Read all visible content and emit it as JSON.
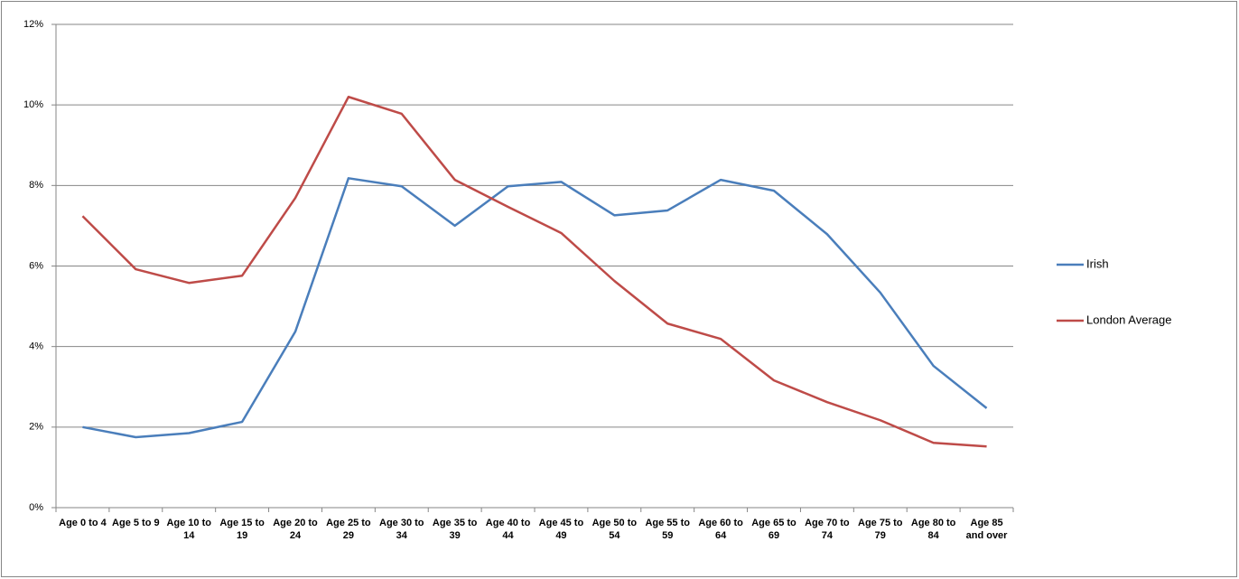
{
  "chart_data": {
    "type": "line",
    "categories": [
      "Age 0 to 4",
      "Age 5 to 9",
      "Age 10 to 14",
      "Age 15 to 19",
      "Age 20 to 24",
      "Age 25 to 29",
      "Age 30 to 34",
      "Age 35 to 39",
      "Age 40 to 44",
      "Age 45 to 49",
      "Age 50 to 54",
      "Age 55 to 59",
      "Age 60 to 64",
      "Age 65 to 69",
      "Age 70 to 74",
      "Age 75 to 79",
      "Age 80 to 84",
      "Age 85 and over"
    ],
    "series": [
      {
        "name": "Irish",
        "color": "#4a7ebb",
        "values": [
          2.0,
          1.75,
          1.85,
          2.13,
          4.37,
          8.18,
          7.98,
          7.0,
          7.98,
          8.09,
          7.26,
          7.38,
          8.14,
          7.87,
          6.79,
          5.34,
          3.52,
          2.47
        ]
      },
      {
        "name": "London Average",
        "color": "#be4b48",
        "values": [
          7.24,
          5.92,
          5.58,
          5.76,
          7.69,
          10.2,
          9.78,
          8.14,
          7.47,
          6.82,
          5.63,
          4.57,
          4.19,
          3.16,
          2.62,
          2.17,
          1.61,
          1.52
        ]
      }
    ],
    "ylim": [
      0,
      12
    ],
    "yticks": [
      {
        "value": 0,
        "label": "0%"
      },
      {
        "value": 2,
        "label": "2%"
      },
      {
        "value": 4,
        "label": "4%"
      },
      {
        "value": 6,
        "label": "6%"
      },
      {
        "value": 8,
        "label": "8%"
      },
      {
        "value": 10,
        "label": "10%"
      },
      {
        "value": 12,
        "label": "12%"
      }
    ],
    "grid": true,
    "legend": "right"
  }
}
